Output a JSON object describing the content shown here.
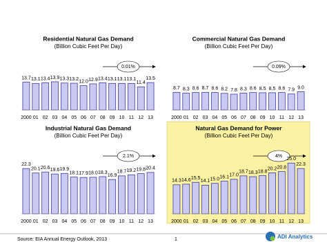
{
  "chart_data": [
    {
      "type": "bar",
      "title": "Residential Natural Gas Demand",
      "subtitle": "(Billion Cubic Feet Per Day)",
      "annotation": "0.01%",
      "categories": [
        "2000",
        "01",
        "02",
        "03",
        "04",
        "05",
        "06",
        "07",
        "08",
        "09",
        "10",
        "11",
        "12",
        "13"
      ],
      "values": [
        13.7,
        13.1,
        13.4,
        13.9,
        13.3,
        13.2,
        12.0,
        12.9,
        13.4,
        13.1,
        13.1,
        13.1,
        11.4,
        13.5
      ],
      "value_labels": [
        "13.7",
        "13.1",
        "13.4",
        "13.9",
        "13.3",
        "13.2",
        "12.0",
        "12.9",
        "13.4",
        "13.1",
        "13.1",
        "13.1",
        "11.4",
        "13.5"
      ],
      "color": "#c9c9f2"
    },
    {
      "type": "bar",
      "title": "Commercial Natural Gas Demand",
      "subtitle": "(Billion Cubic Feet Per Day)",
      "annotation": "0.09%",
      "categories": [
        "2000",
        "01",
        "02",
        "03",
        "04",
        "05",
        "06",
        "07",
        "08",
        "09",
        "10",
        "11",
        "12",
        "13"
      ],
      "values": [
        8.7,
        8.3,
        8.6,
        8.7,
        8.6,
        8.2,
        7.8,
        8.3,
        8.6,
        8.5,
        8.5,
        8.6,
        7.9,
        9.0
      ],
      "value_labels": [
        "8.7",
        "8.3",
        "8.6",
        "8.7",
        "8.6",
        "8.2",
        "7.8",
        "8.3",
        "8.6",
        "8.5",
        "8.5",
        "8.6",
        "7.9",
        "9.0"
      ],
      "color": "#c9c9f2"
    },
    {
      "type": "bar",
      "title": "Industrial Natural Gas Demand",
      "subtitle": "(Billion Cubic Feet Per Day)",
      "annotation": "2.1%",
      "categories": [
        "2000",
        "01",
        "02",
        "03",
        "04",
        "05",
        "06",
        "07",
        "08",
        "09",
        "10",
        "11",
        "12",
        "13"
      ],
      "values": [
        22.3,
        20.1,
        20.6,
        19.6,
        19.9,
        18.1,
        17.9,
        18.0,
        18.3,
        16.9,
        18.7,
        19.2,
        19.8,
        20.4
      ],
      "value_labels": [
        "22.3",
        "20.1",
        "20.6",
        "19.6",
        "19.9",
        "18.1",
        "17.9",
        "18.0",
        "18.3",
        "16.9",
        "18.7",
        "19.2",
        "19.8",
        "20.4"
      ],
      "color": "#c9c9f2"
    },
    {
      "type": "bar",
      "title": "Natural Gas Demand for Power",
      "subtitle": "(Billion Cubic Feet Per Day)",
      "annotation": "4%",
      "categories": [
        "2000",
        "01",
        "02",
        "03",
        "04",
        "05",
        "06",
        "07",
        "08",
        "09",
        "10",
        "11",
        "12",
        "13"
      ],
      "values": [
        14.3,
        14.6,
        15.5,
        14.1,
        15.0,
        16.1,
        17.0,
        18.7,
        18.3,
        18.8,
        20.2,
        20.8,
        25.0,
        22.3
      ],
      "value_labels": [
        "14.3",
        "14.6",
        "15.5",
        "14.1",
        "15.0",
        "16.1",
        "17.0",
        "18.7",
        "18.3",
        "18.8",
        "20.2",
        "20.8",
        "25.0",
        "22.3"
      ],
      "color": "#c9c9f2",
      "background": "#fbf3a3"
    }
  ],
  "footer": {
    "source": "Source: EIA Annual Energy Outlook, 2013",
    "page": "1",
    "logo": "ADI Analytics"
  }
}
